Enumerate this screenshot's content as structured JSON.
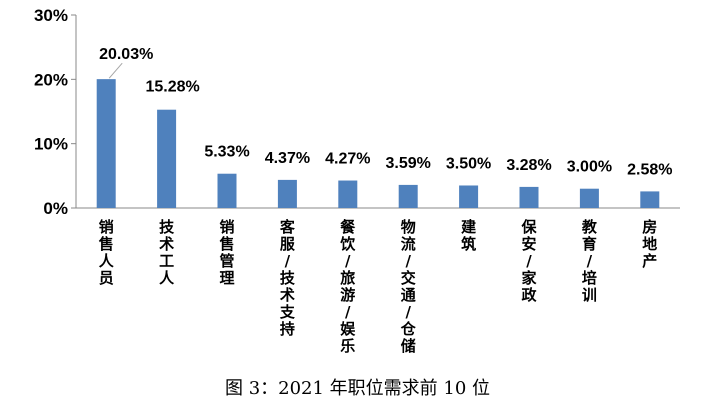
{
  "caption": "图 3：2021 年职位需求前 10 位",
  "chart_data": {
    "type": "bar",
    "categories": [
      "销售人员",
      "技术工人",
      "销售管理",
      "客服/技术支持",
      "餐饮/旅游/娱乐",
      "物流/交通/仓储",
      "建筑",
      "保安/家政",
      "教育/培训",
      "房地产"
    ],
    "values": [
      20.03,
      15.28,
      5.33,
      4.37,
      4.27,
      3.59,
      3.5,
      3.28,
      3.0,
      2.58
    ],
    "data_labels": [
      "20.03%",
      "15.28%",
      "5.33%",
      "4.37%",
      "4.27%",
      "3.59%",
      "3.50%",
      "3.28%",
      "3.00%",
      "2.58%"
    ],
    "ylim": [
      0,
      30
    ],
    "yticks": [
      0,
      10,
      20,
      30
    ],
    "ytick_labels": [
      "0%",
      "10%",
      "20%",
      "30%"
    ],
    "bar_color": "#4f81bd",
    "grid": false,
    "legend": "none"
  }
}
